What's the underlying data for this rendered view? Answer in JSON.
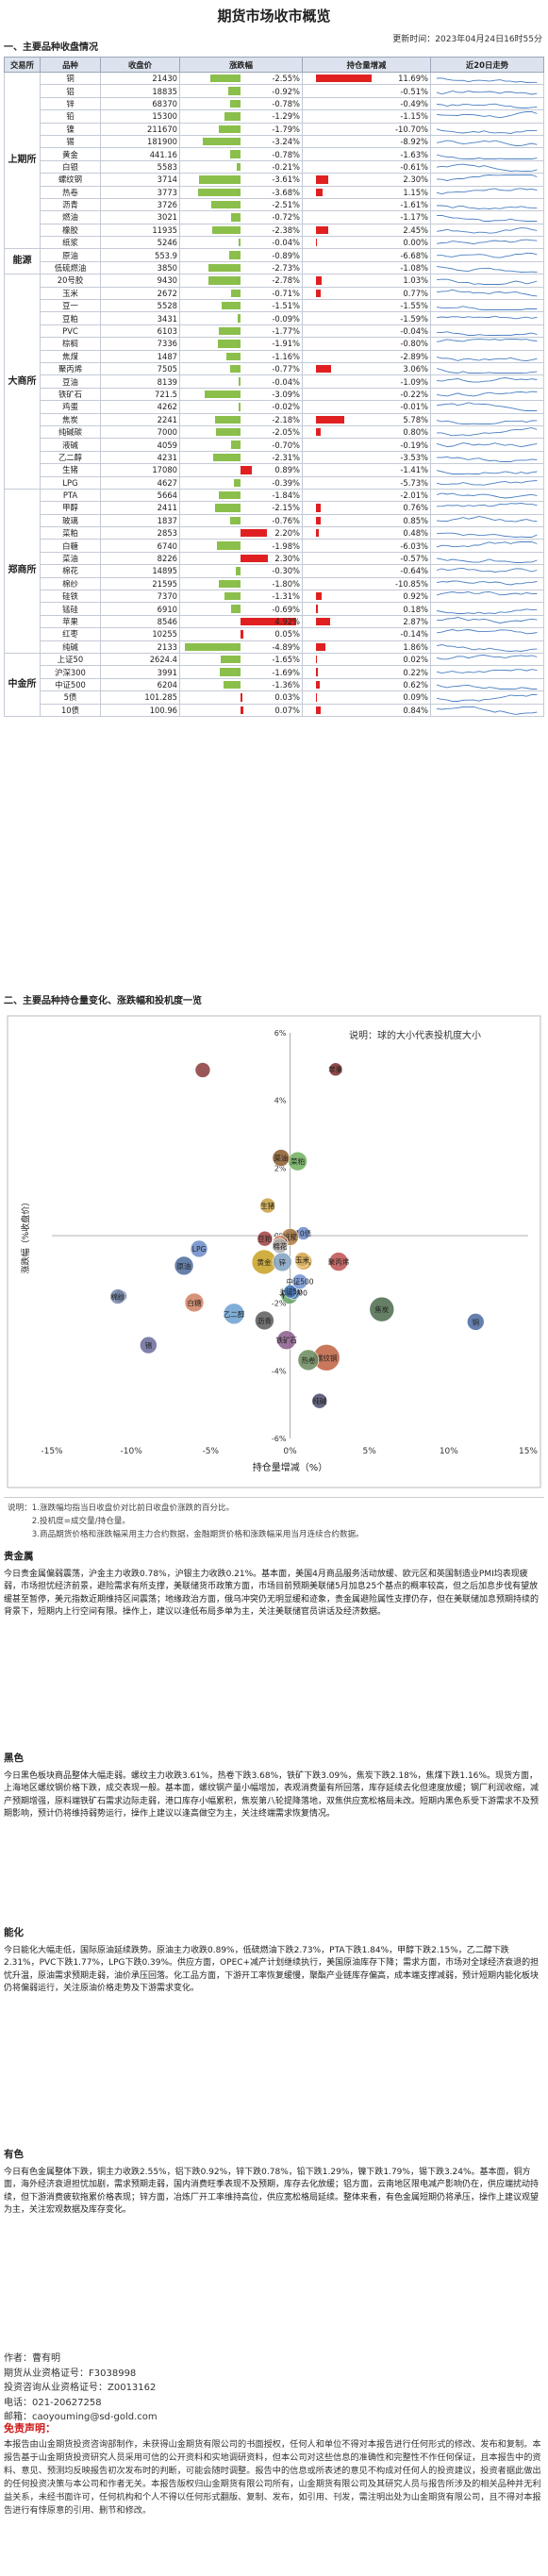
{
  "header": {
    "title": "期货市场收市概览",
    "update_time": "更新时间：2023年04月24日16时55分"
  },
  "section1": {
    "title": "一、主要品种收盘情况",
    "columns": [
      "交易所",
      "品种",
      "收盘价",
      "涨跌幅",
      "持仓量增减",
      "近20日走势"
    ]
  },
  "groups": [
    {
      "name": "上期所",
      "rows": [
        {
          "name": "铜",
          "close": "21430",
          "chg": "-2.55%",
          "chg_v": -2.55,
          "hold": "11.69%",
          "hold_v": 11.69
        },
        {
          "name": "铝",
          "close": "18835",
          "chg": "-0.92%",
          "chg_v": -0.92,
          "hold": "-0.51%",
          "hold_v": -0.51
        },
        {
          "name": "锌",
          "close": "68370",
          "chg": "-0.78%",
          "chg_v": -0.78,
          "hold": "-0.49%",
          "hold_v": -0.49
        },
        {
          "name": "铅",
          "close": "15300",
          "chg": "-1.29%",
          "chg_v": -1.29,
          "hold": "-1.15%",
          "hold_v": -1.15
        },
        {
          "name": "镍",
          "close": "211670",
          "chg": "-1.79%",
          "chg_v": -1.79,
          "hold": "-10.70%",
          "hold_v": -10.7
        },
        {
          "name": "锡",
          "close": "181900",
          "chg": "-3.24%",
          "chg_v": -3.24,
          "hold": "-8.92%",
          "hold_v": -8.92
        },
        {
          "name": "黄金",
          "close": "441.16",
          "chg": "-0.78%",
          "chg_v": -0.78,
          "hold": "-1.63%",
          "hold_v": -1.63
        },
        {
          "name": "白银",
          "close": "5583",
          "chg": "-0.21%",
          "chg_v": -0.21,
          "hold": "-0.61%",
          "hold_v": -0.61
        },
        {
          "name": "螺纹钢",
          "close": "3714",
          "chg": "-3.61%",
          "chg_v": -3.61,
          "hold": "2.30%",
          "hold_v": 2.3
        },
        {
          "name": "热卷",
          "close": "3773",
          "chg": "-3.68%",
          "chg_v": -3.68,
          "hold": "1.15%",
          "hold_v": 1.15
        },
        {
          "name": "沥青",
          "close": "3726",
          "chg": "-2.51%",
          "chg_v": -2.51,
          "hold": "-1.61%",
          "hold_v": -1.61
        },
        {
          "name": "燃油",
          "close": "3021",
          "chg": "-0.72%",
          "chg_v": -0.72,
          "hold": "-1.17%",
          "hold_v": -1.17
        },
        {
          "name": "橡胶",
          "close": "11935",
          "chg": "-2.38%",
          "chg_v": -2.38,
          "hold": "2.45%",
          "hold_v": 2.45
        },
        {
          "name": "纸浆",
          "close": "5246",
          "chg": "-0.04%",
          "chg_v": -0.04,
          "hold": "0.00%",
          "hold_v": 0.0
        }
      ]
    },
    {
      "name": "能源",
      "rows": [
        {
          "name": "原油",
          "close": "553.9",
          "chg": "-0.89%",
          "chg_v": -0.89,
          "hold": "-6.68%",
          "hold_v": -6.68
        },
        {
          "name": "低硫燃油",
          "close": "3850",
          "chg": "-2.73%",
          "chg_v": -2.73,
          "hold": "-1.08%",
          "hold_v": -1.08
        }
      ]
    },
    {
      "name": "大商所",
      "rows": [
        {
          "name": "20号胶",
          "close": "9430",
          "chg": "-2.78%",
          "chg_v": -2.78,
          "hold": "1.03%",
          "hold_v": 1.03
        },
        {
          "name": "玉米",
          "close": "2672",
          "chg": "-0.71%",
          "chg_v": -0.71,
          "hold": "0.77%",
          "hold_v": 0.77
        },
        {
          "name": "豆一",
          "close": "5528",
          "chg": "-1.51%",
          "chg_v": -1.51,
          "hold": "-1.55%",
          "hold_v": -1.55
        },
        {
          "name": "豆粕",
          "close": "3431",
          "chg": "-0.09%",
          "chg_v": -0.09,
          "hold": "-1.59%",
          "hold_v": -1.59
        },
        {
          "name": "PVC",
          "close": "6103",
          "chg": "-1.77%",
          "chg_v": -1.77,
          "hold": "-0.04%",
          "hold_v": -0.04
        },
        {
          "name": "棕榈",
          "close": "7336",
          "chg": "-1.91%",
          "chg_v": -1.91,
          "hold": "-0.80%",
          "hold_v": -0.8
        },
        {
          "name": "焦煤",
          "close": "1487",
          "chg": "-1.16%",
          "chg_v": -1.16,
          "hold": "-2.89%",
          "hold_v": -2.89
        },
        {
          "name": "聚丙烯",
          "close": "7505",
          "chg": "-0.77%",
          "chg_v": -0.77,
          "hold": "3.06%",
          "hold_v": 3.06
        },
        {
          "name": "豆油",
          "close": "8139",
          "chg": "-0.04%",
          "chg_v": -0.04,
          "hold": "-1.09%",
          "hold_v": -1.09
        },
        {
          "name": "铁矿石",
          "close": "721.5",
          "chg": "-3.09%",
          "chg_v": -3.09,
          "hold": "-0.22%",
          "hold_v": -0.22
        },
        {
          "name": "鸡蛋",
          "close": "4262",
          "chg": "-0.02%",
          "chg_v": -0.02,
          "hold": "-0.01%",
          "hold_v": -0.01
        },
        {
          "name": "焦炭",
          "close": "2241",
          "chg": "-2.18%",
          "chg_v": -2.18,
          "hold": "5.78%",
          "hold_v": 5.78
        },
        {
          "name": "纯碱碳",
          "close": "7000",
          "chg": "-2.05%",
          "chg_v": -2.05,
          "hold": "0.80%",
          "hold_v": 0.8
        },
        {
          "name": "液碱",
          "close": "4059",
          "chg": "-0.70%",
          "chg_v": -0.7,
          "hold": "-0.19%",
          "hold_v": -0.19
        },
        {
          "name": "乙二醇",
          "close": "4231",
          "chg": "-2.31%",
          "chg_v": -2.31,
          "hold": "-3.53%",
          "hold_v": -3.53
        },
        {
          "name": "生猪",
          "close": "17080",
          "chg": "0.89%",
          "chg_v": 0.89,
          "hold": "-1.41%",
          "hold_v": -1.41
        },
        {
          "name": "LPG",
          "close": "4627",
          "chg": "-0.39%",
          "chg_v": -0.39,
          "hold": "-5.73%",
          "hold_v": -5.73
        }
      ]
    },
    {
      "name": "郑商所",
      "rows": [
        {
          "name": "PTA",
          "close": "5664",
          "chg": "-1.84%",
          "chg_v": -1.84,
          "hold": "-2.01%",
          "hold_v": -2.01
        },
        {
          "name": "甲醇",
          "close": "2411",
          "chg": "-2.15%",
          "chg_v": -2.15,
          "hold": "0.76%",
          "hold_v": 0.76
        },
        {
          "name": "玻璃",
          "close": "1837",
          "chg": "-0.76%",
          "chg_v": -0.76,
          "hold": "0.85%",
          "hold_v": 0.85
        },
        {
          "name": "菜粕",
          "close": "2853",
          "chg": "2.20%",
          "chg_v": 2.2,
          "hold": "0.48%",
          "hold_v": 0.48
        },
        {
          "name": "白糖",
          "close": "6740",
          "chg": "-1.98%",
          "chg_v": -1.98,
          "hold": "-6.03%",
          "hold_v": -6.03
        },
        {
          "name": "菜油",
          "close": "8226",
          "chg": "2.30%",
          "chg_v": 2.3,
          "hold": "-0.57%",
          "hold_v": -0.57
        },
        {
          "name": "棉花",
          "close": "14895",
          "chg": "-0.30%",
          "chg_v": -0.3,
          "hold": "-0.64%",
          "hold_v": -0.64
        },
        {
          "name": "棉纱",
          "close": "21595",
          "chg": "-1.80%",
          "chg_v": -1.8,
          "hold": "-10.85%",
          "hold_v": -10.85
        },
        {
          "name": "硅铁",
          "close": "7370",
          "chg": "-1.31%",
          "chg_v": -1.31,
          "hold": "0.92%",
          "hold_v": 0.92
        },
        {
          "name": "锰硅",
          "close": "6910",
          "chg": "-0.69%",
          "chg_v": -0.69,
          "hold": "0.18%",
          "hold_v": 0.18
        },
        {
          "name": "苹果",
          "close": "8546",
          "chg": "4.92%",
          "chg_v": 4.92,
          "hold": "2.87%",
          "hold_v": 2.87
        },
        {
          "name": "红枣",
          "close": "10255",
          "chg": "0.05%",
          "chg_v": 0.05,
          "hold": "-0.14%",
          "hold_v": -0.14
        },
        {
          "name": "纯碱",
          "close": "2133",
          "chg": "-4.89%",
          "chg_v": -4.89,
          "hold": "1.86%",
          "hold_v": 1.86
        }
      ]
    },
    {
      "name": "中金所",
      "rows": [
        {
          "name": "上证50",
          "close": "2624.4",
          "chg": "-1.65%",
          "chg_v": -1.65,
          "hold": "0.02%",
          "hold_v": 0.02
        },
        {
          "name": "沪深300",
          "close": "3991",
          "chg": "-1.69%",
          "chg_v": -1.69,
          "hold": "0.22%",
          "hold_v": 0.22
        },
        {
          "name": "中证500",
          "close": "6204",
          "chg": "-1.36%",
          "chg_v": -1.36,
          "hold": "0.62%",
          "hold_v": 0.62
        },
        {
          "name": "5债",
          "close": "101.285",
          "chg": "0.03%",
          "chg_v": 0.03,
          "hold": "0.09%",
          "hold_v": 0.09
        },
        {
          "name": "10债",
          "close": "100.96",
          "chg": "0.07%",
          "chg_v": 0.07,
          "hold": "0.84%",
          "hold_v": 0.84
        }
      ]
    }
  ],
  "colors": {
    "up": "#e02020",
    "down": "#8bbf4b",
    "spark": "#4a7fc1"
  },
  "section2": {
    "title": "二、主要品种持仓量变化、涨跌幅和投机度一览",
    "chart_data": {
      "type": "scatter",
      "title": "",
      "legend_note": "说明：球的大小代表投机度大小",
      "xlabel": "持仓量增减（%）",
      "ylabel": "涨跌幅（%收盘价）",
      "xlim": [
        -15,
        15
      ],
      "ylim": [
        -6,
        6
      ],
      "xticks": [
        "-15%",
        "-10%",
        "-5%",
        "0%",
        "5%",
        "10%",
        "15%"
      ],
      "yticks": [
        "6%",
        "4%",
        "2%",
        "0%",
        "-2%",
        "-4%",
        "-6%"
      ],
      "points": [
        {
          "label": "苹果",
          "x": 2.87,
          "y": 4.92,
          "size": 7,
          "color": "#7a2a2a"
        },
        {
          "label": "",
          "x": -5.5,
          "y": 4.9,
          "size": 8,
          "color": "#8a3a3a"
        },
        {
          "label": "菜粕",
          "x": 0.48,
          "y": 2.2,
          "size": 10,
          "color": "#6fae5a"
        },
        {
          "label": "菜油",
          "x": -0.57,
          "y": 2.3,
          "size": 9,
          "color": "#8a5a2a"
        },
        {
          "label": "生猪",
          "x": -1.41,
          "y": 0.89,
          "size": 8,
          "color": "#c8a040"
        },
        {
          "label": "10债",
          "x": 0.84,
          "y": 0.07,
          "size": 7,
          "color": "#6a8ac8"
        },
        {
          "label": "5债",
          "x": 0.09,
          "y": 0.03,
          "size": 6,
          "color": "#5a9ad8"
        },
        {
          "label": "纸浆",
          "x": 0.0,
          "y": -0.04,
          "size": 9,
          "color": "#b07a40"
        },
        {
          "label": "豆粕",
          "x": -1.59,
          "y": -0.09,
          "size": 8,
          "color": "#a04040"
        },
        {
          "label": "原油",
          "x": -6.68,
          "y": -0.89,
          "size": 10,
          "color": "#4a6a9a"
        },
        {
          "label": "白银",
          "x": -0.61,
          "y": -0.21,
          "size": 8,
          "color": "#d08060"
        },
        {
          "label": "LPG",
          "x": -5.73,
          "y": -0.39,
          "size": 9,
          "color": "#6a8ac8"
        },
        {
          "label": "玻璃",
          "x": 0.85,
          "y": -0.76,
          "size": 9,
          "color": "#d8a040"
        },
        {
          "label": "聚丙烯",
          "x": 3.06,
          "y": -0.77,
          "size": 10,
          "color": "#c05050"
        },
        {
          "label": "黄金",
          "x": -1.63,
          "y": -0.78,
          "size": 13,
          "color": "#c8a020"
        },
        {
          "label": "锌",
          "x": -0.49,
          "y": -0.78,
          "size": 10,
          "color": "#80a0c0"
        },
        {
          "label": "棉花",
          "x": -0.64,
          "y": -0.3,
          "size": 8,
          "color": "#b0b0b0"
        },
        {
          "label": "PVC",
          "x": -0.04,
          "y": -1.77,
          "size": 9,
          "color": "#60a060"
        },
        {
          "label": "焦炭",
          "x": 5.78,
          "y": -2.18,
          "size": 13,
          "color": "#4a6a4a"
        },
        {
          "label": "镍",
          "x": -10.7,
          "y": -1.79,
          "size": 7,
          "color": "#4a5a8a"
        },
        {
          "label": "锡",
          "x": -8.92,
          "y": -3.24,
          "size": 9,
          "color": "#6a6a9a"
        },
        {
          "label": "棉纱",
          "x": -10.85,
          "y": -1.8,
          "size": 8,
          "color": "#7a8aaa"
        },
        {
          "label": "白糖",
          "x": -6.03,
          "y": -1.98,
          "size": 10,
          "color": "#d08060"
        },
        {
          "label": "螺纹钢",
          "x": 2.3,
          "y": -3.61,
          "size": 14,
          "color": "#c06040"
        },
        {
          "label": "热卷",
          "x": 1.15,
          "y": -3.68,
          "size": 11,
          "color": "#6a8a5a"
        },
        {
          "label": "铁矿石",
          "x": -0.22,
          "y": -3.09,
          "size": 10,
          "color": "#8a5a8a"
        },
        {
          "label": "纯碱",
          "x": 1.86,
          "y": -4.89,
          "size": 8,
          "color": "#4a4a6a"
        },
        {
          "label": "铜",
          "x": 11.69,
          "y": -2.55,
          "size": 9,
          "color": "#4a6aa0"
        },
        {
          "label": "乙二醇",
          "x": -3.53,
          "y": -2.31,
          "size": 11,
          "color": "#6aa0d0"
        },
        {
          "label": "沪深300",
          "x": 0.22,
          "y": -1.69,
          "size": 7,
          "color": "#5080c0"
        },
        {
          "label": "上证50",
          "x": 0.02,
          "y": -1.65,
          "size": 7,
          "color": "#4070b0"
        },
        {
          "label": "沥青",
          "x": -1.61,
          "y": -2.51,
          "size": 10,
          "color": "#5a5a5a"
        },
        {
          "label": "中证500",
          "x": 0.62,
          "y": -1.36,
          "size": 8,
          "color": "#7090d0"
        },
        {
          "label": "玉米",
          "x": 0.77,
          "y": -0.71,
          "size": 8,
          "color": "#d8b060"
        }
      ]
    }
  },
  "notes": [
    "说明：1.涨跌幅均指当日收盘价对比前日收盘价涨跌的百分比。",
    "　　　2.投机度=成交量/持仓量。",
    "　　　3.商品期货价格和涨跌幅采用主力合约数据，金融期货价格和涨跌幅采用当月连续合约数据。"
  ],
  "commentary": [
    {
      "title": "贵金属",
      "text": "今日贵金属偏弱震荡，沪金主力收跌0.78%，沪银主力收跌0.21%。基本面，美国4月商品服务活动放缓、欧元区和英国制造业PMI均表现疲弱，市场担忧经济前景，避险需求有所支撑，美联储货币政策方面，市场目前预期美联储5月加息25个基点的概率较高，但之后加息步伐有望放缓甚至暂停，美元指数近期维持区间震荡；地缘政治方面，俄乌冲突仍无明显缓和迹象，贵金属避险属性支撑仍存，但在美联储加息预期持续的背景下，短期内上行空间有限。操作上，建议以逢低布局多单为主，关注美联储官员讲话及经济数据。"
    },
    {
      "title": "黑色",
      "text": "今日黑色板块商品整体大幅走弱。螺纹主力收跌3.61%，热卷下跌3.68%，铁矿下跌3.09%，焦炭下跌2.18%，焦煤下跌1.16%。现货方面，上海地区螺纹钢价格下跌，成交表现一般。基本面，螺纹钢产量小幅增加，表观消费量有所回落，库存延续去化但速度放缓；钢厂利润收缩，减产预期增强，原料端铁矿石需求边际走弱，港口库存小幅累积，焦炭第八轮提降落地，双焦供应宽松格局未改。短期内黑色系受下游需求不及预期影响，预计仍将维持弱势运行，操作上建议以逢高做空为主，关注终端需求恢复情况。"
    },
    {
      "title": "能化",
      "text": "今日能化大幅走低，国际原油延续跌势。原油主力收跌0.89%，低硫燃油下跌2.73%，PTA下跌1.84%，甲醇下跌2.15%，乙二醇下跌2.31%，PVC下跌1.77%，LPG下跌0.39%。供应方面，OPEC+减产计划继续执行，美国原油库存下降；需求方面，市场对全球经济衰退的担忧升温，原油需求预期走弱，油价承压回落。化工品方面，下游开工率恢复缓慢，聚酯产业链库存偏高，成本端支撑减弱，预计短期内能化板块仍将偏弱运行，关注原油价格走势及下游需求变化。"
    },
    {
      "title": "有色",
      "text": "今日有色金属整体下跌，铜主力收跌2.55%，铝下跌0.92%，锌下跌0.78%，铅下跌1.29%，镍下跌1.79%，锡下跌3.24%。基本面，铜方面，海外经济衰退担忧加剧，需求预期走弱，国内消费旺季表现不及预期，库存去化放缓；铝方面，云南地区限电减产影响仍在，供应端扰动持续，但下游消费疲软拖累价格表现；锌方面，冶炼厂开工率维持高位，供应宽松格局延续。整体来看，有色金属短期仍将承压，操作上建议观望为主，关注宏观数据及库存变化。"
    }
  ],
  "author": {
    "name": "作者：曹有明",
    "cert1": "期货从业资格证号：F3038998",
    "cert2": "投资咨询从业资格证号：Z0013162",
    "phone": "电话：021-20627258",
    "email": "邮箱：caoyouming@sd-gold.com"
  },
  "disclaimer": {
    "title": "免责声明：",
    "text": "本报告由山金期货投资咨询部制作，未获得山金期货有限公司的书面授权，任何人和单位不得对本报告进行任何形式的修改、发布和复制。本报告基于山金期货投资研究人员采用可信的公开资料和实地调研资料，但本公司对这些信息的准确性和完整性不作任何保证，且本报告中的资料、意见、预测均反映报告初次发布时的判断，可能会随时调整。报告中的信息或所表述的意见不构成对任何人的投资建议，投资者据此做出的任何投资决策与本公司和作者无关。本报告版权归山金期货有限公司所有，山金期货有限公司及其研究人员与报告所涉及的相关品种并无利益关系，未经书面许可，任何机构和个人不得以任何形式翻版、复制、发布，如引用、刊发，需注明出处为山金期货有限公司，且不得对本报告进行有悖原意的引用、删节和修改。"
  }
}
